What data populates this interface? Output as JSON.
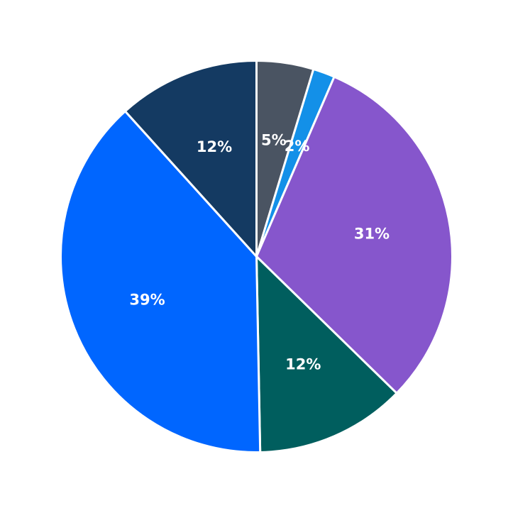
{
  "chart_data": {
    "type": "pie",
    "start_angle_deg": 90,
    "direction": "clockwise",
    "slices": [
      {
        "label": "5%",
        "value": 4.7,
        "color": "#4a5462"
      },
      {
        "label": "2%",
        "value": 1.8,
        "color": "#1390e8"
      },
      {
        "label": "31%",
        "value": 30.8,
        "color": "#8656cc"
      },
      {
        "label": "12%",
        "value": 12.4,
        "color": "#005e5e"
      },
      {
        "label": "39%",
        "value": 38.6,
        "color": "#0066ff"
      },
      {
        "label": "12%",
        "value": 11.7,
        "color": "#143a62"
      }
    ]
  }
}
